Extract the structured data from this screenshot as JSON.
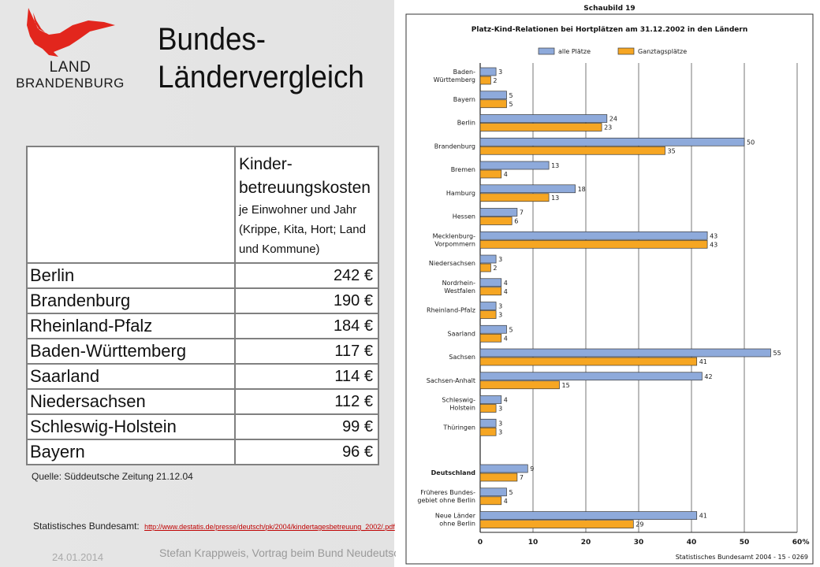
{
  "logo": {
    "line1": "LAND",
    "line2": "BRANDENBURG",
    "eagle_color": "#e2261d"
  },
  "title": {
    "line1": "Bundes-",
    "line2": "Ländervergleich"
  },
  "cost_table": {
    "header_line1": "Kinder-",
    "header_line2": "betreuungskosten",
    "header_line3": "je Einwohner und Jahr",
    "header_line4": "(Krippe, Kita, Hort; Land",
    "header_line5": "und Kommune)",
    "rows": [
      {
        "land": "Berlin",
        "value": "242 €"
      },
      {
        "land": "Brandenburg",
        "value": "190 €"
      },
      {
        "land": "Rheinland-Pfalz",
        "value": "184 €"
      },
      {
        "land": "Baden-Württemberg",
        "value": "117 €"
      },
      {
        "land": "Saarland",
        "value": "114 €"
      },
      {
        "land": "Niedersachsen",
        "value": "112 €"
      },
      {
        "land": "Schleswig-Holstein",
        "value": "99 €"
      },
      {
        "land": "Bayern",
        "value": "96 €"
      }
    ]
  },
  "sources": {
    "source1": "Quelle: Süddeutsche Zeitung 21.12.04",
    "source2_prefix": "Statistisches Bundesamt:",
    "source2_link": "http://www.destatis.de/presse/deutsch/pk/2004/kindertagesbetreuung_2002/.pdf"
  },
  "footer": {
    "date": "24.01.2014",
    "text": "Stefan Krappweis, Vortrag beim Bund Neudeutscher"
  },
  "chart_meta": {
    "header": "Schaubild 19",
    "credit": "Statistisches Bundesamt 2004 - 15 - 0269",
    "percent_label": "%"
  },
  "colors": {
    "series_all": "#8eaadb",
    "series_full": "#f6a623",
    "bar_stroke": "#3a3a3a"
  },
  "chart_data": {
    "type": "bar",
    "orientation": "horizontal",
    "title": "Platz-Kind-Relationen bei Hortplätzen am 31.12.2002 in den Ländern",
    "categories": [
      [
        "Baden-",
        "Württemberg"
      ],
      [
        "Bayern"
      ],
      [
        "Berlin"
      ],
      [
        "Brandenburg"
      ],
      [
        "Bremen"
      ],
      [
        "Hamburg"
      ],
      [
        "Hessen"
      ],
      [
        "Mecklenburg-",
        "Vorpommern"
      ],
      [
        "Niedersachsen"
      ],
      [
        "Nordrhein-",
        "Westfalen"
      ],
      [
        "Rheinland-Pfalz"
      ],
      [
        "Saarland"
      ],
      [
        "Sachsen"
      ],
      [
        "Sachsen-Anhalt"
      ],
      [
        "Schleswig-",
        "Holstein"
      ],
      [
        "Thüringen"
      ],
      [
        "Deutschland"
      ],
      [
        "Früheres Bundes-",
        "gebiet ohne Berlin"
      ],
      [
        "Neue Länder",
        "ohne Berlin"
      ]
    ],
    "bold_categories": [
      "Deutschland"
    ],
    "series": [
      {
        "name": "alle Plätze",
        "values": [
          3,
          5,
          24,
          50,
          13,
          18,
          7,
          43,
          3,
          4,
          3,
          5,
          55,
          42,
          4,
          3,
          9,
          5,
          41
        ]
      },
      {
        "name": "Ganztagsplätze",
        "values": [
          2,
          5,
          23,
          35,
          4,
          13,
          6,
          43,
          2,
          4,
          3,
          4,
          41,
          15,
          3,
          3,
          7,
          4,
          29
        ]
      }
    ],
    "x_ticks": [
      "0",
      "10",
      "20",
      "30",
      "40",
      "50",
      "60"
    ],
    "xlim": [
      0,
      60
    ],
    "grid": true,
    "legend": "top"
  }
}
